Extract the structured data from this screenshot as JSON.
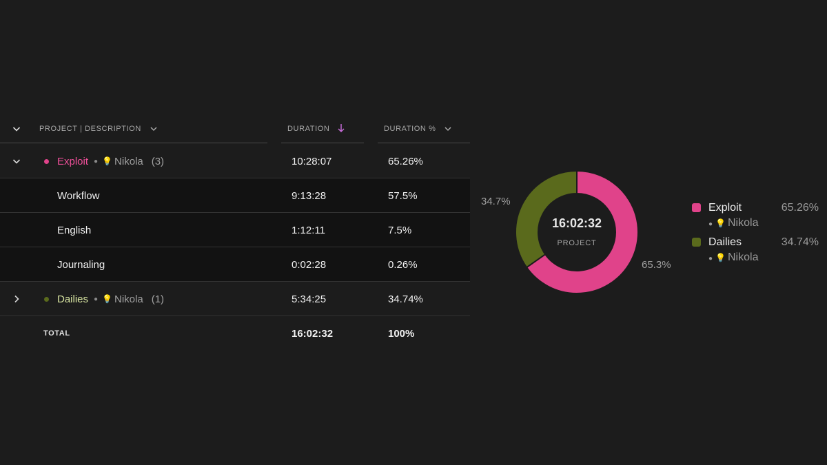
{
  "table": {
    "headers": {
      "project": "PROJECT | DESCRIPTION",
      "duration": "DURATION",
      "duration_pct": "DURATION %"
    },
    "groups": [
      {
        "name": "Exploit",
        "client": "Nikola",
        "count": "(3)",
        "duration": "10:28:07",
        "percent": "65.26%",
        "color": "#e0438a",
        "expanded": true,
        "children": [
          {
            "name": "Workflow",
            "duration": "9:13:28",
            "percent": "57.5%"
          },
          {
            "name": "English",
            "duration": "1:12:11",
            "percent": "7.5%"
          },
          {
            "name": "Journaling",
            "duration": "0:02:28",
            "percent": "0.26%"
          }
        ]
      },
      {
        "name": "Dailies",
        "client": "Nikola",
        "count": "(1)",
        "duration": "5:34:25",
        "percent": "34.74%",
        "color": "#5a6a1c",
        "name_color": "#d6e3a0",
        "expanded": false
      }
    ],
    "total": {
      "label": "TOTAL",
      "duration": "16:02:32",
      "percent": "100%"
    }
  },
  "chart_data": {
    "type": "pie",
    "donut": true,
    "center_value": "16:02:32",
    "center_label": "PROJECT",
    "slices": [
      {
        "name": "Exploit",
        "value": 65.26,
        "label": "65.3%",
        "color": "#e0438a"
      },
      {
        "name": "Dailies",
        "value": 34.74,
        "label": "34.7%",
        "color": "#5a6a1c"
      }
    ]
  },
  "legend": [
    {
      "name": "Exploit",
      "client": "Nikola",
      "percent": "65.26%",
      "color": "#e0438a"
    },
    {
      "name": "Dailies",
      "client": "Nikola",
      "percent": "34.74%",
      "color": "#5a6a1c"
    }
  ],
  "icons": {
    "sort": "arrow-down-icon",
    "client": "lightbulb-icon"
  },
  "colors": {
    "accent": "#c46bd6",
    "background": "#1c1c1c"
  }
}
